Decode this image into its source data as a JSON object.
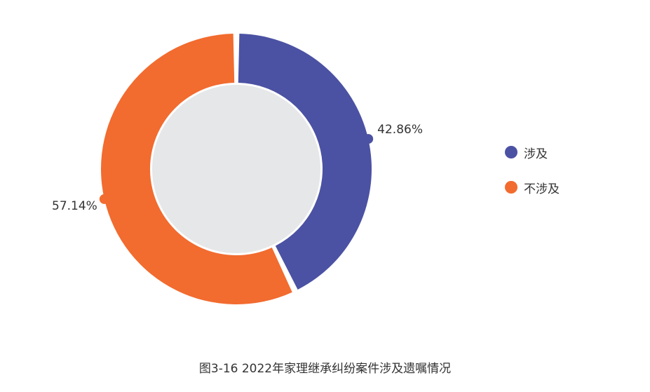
{
  "chart_data": {
    "type": "pie",
    "donut": true,
    "title": "图3-16  2022年家理继承纠纷案件涉及遗嘱情况",
    "categories": [
      "涉及",
      "不涉及"
    ],
    "values": [
      42.86,
      57.14
    ],
    "labels": [
      "42.86%",
      "57.14%"
    ],
    "colors": [
      "#4b52a3",
      "#f26b2f"
    ],
    "center_color": "#e6e7e9",
    "legend_position": "right"
  }
}
